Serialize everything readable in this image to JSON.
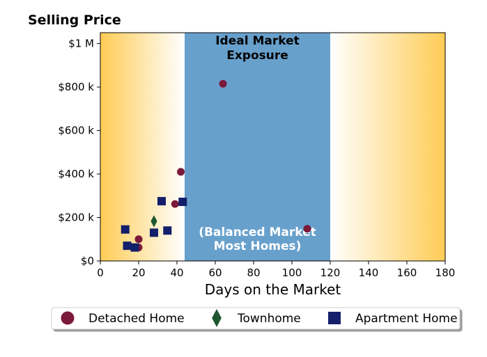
{
  "chart_data": {
    "type": "scatter",
    "title": "Selling Price",
    "xlabel": "Days on the Market",
    "ylabel": "",
    "xlim": [
      0,
      180
    ],
    "ylim": [
      0,
      1050000
    ],
    "x_ticks": [
      0,
      20,
      40,
      60,
      80,
      100,
      120,
      140,
      160,
      180
    ],
    "x_tick_labels": [
      "0",
      "20",
      "40",
      "60",
      "80",
      "100",
      "120",
      "140",
      "160",
      "180"
    ],
    "y_ticks": [
      0,
      200000,
      400000,
      600000,
      800000,
      1000000
    ],
    "y_tick_labels": [
      "$0",
      "$200 k",
      "$400 k",
      "$600 k",
      "$800 k",
      "$1 M"
    ],
    "grid": false,
    "legend_position": "bottom",
    "band": {
      "x_range": [
        44,
        120
      ],
      "color": "#68a0cc",
      "title_line1": "Ideal Market",
      "title_line2": "Exposure",
      "sub_line1": "(Balanced Market",
      "sub_line2": "Most Homes)"
    },
    "background_gradient": {
      "edge_color": "#ffcc55",
      "center_color": "#ffffff"
    },
    "series": [
      {
        "name": "Detached Home",
        "marker": "circle",
        "color": "#7b1a3a",
        "points": [
          {
            "x": 64,
            "y": 815000
          },
          {
            "x": 42,
            "y": 410000
          },
          {
            "x": 39,
            "y": 262000
          },
          {
            "x": 108,
            "y": 148000
          },
          {
            "x": 20,
            "y": 100000
          },
          {
            "x": 20,
            "y": 62000
          }
        ]
      },
      {
        "name": "Townhome",
        "marker": "diamond",
        "color": "#1e5631",
        "points": [
          {
            "x": 28,
            "y": 183000
          }
        ]
      },
      {
        "name": "Apartment Home",
        "marker": "square",
        "color": "#141f6b",
        "points": [
          {
            "x": 32,
            "y": 275000
          },
          {
            "x": 43,
            "y": 272000
          },
          {
            "x": 13,
            "y": 145000
          },
          {
            "x": 35,
            "y": 140000
          },
          {
            "x": 28,
            "y": 130000
          },
          {
            "x": 14,
            "y": 70000
          },
          {
            "x": 18,
            "y": 62000
          }
        ]
      }
    ]
  }
}
